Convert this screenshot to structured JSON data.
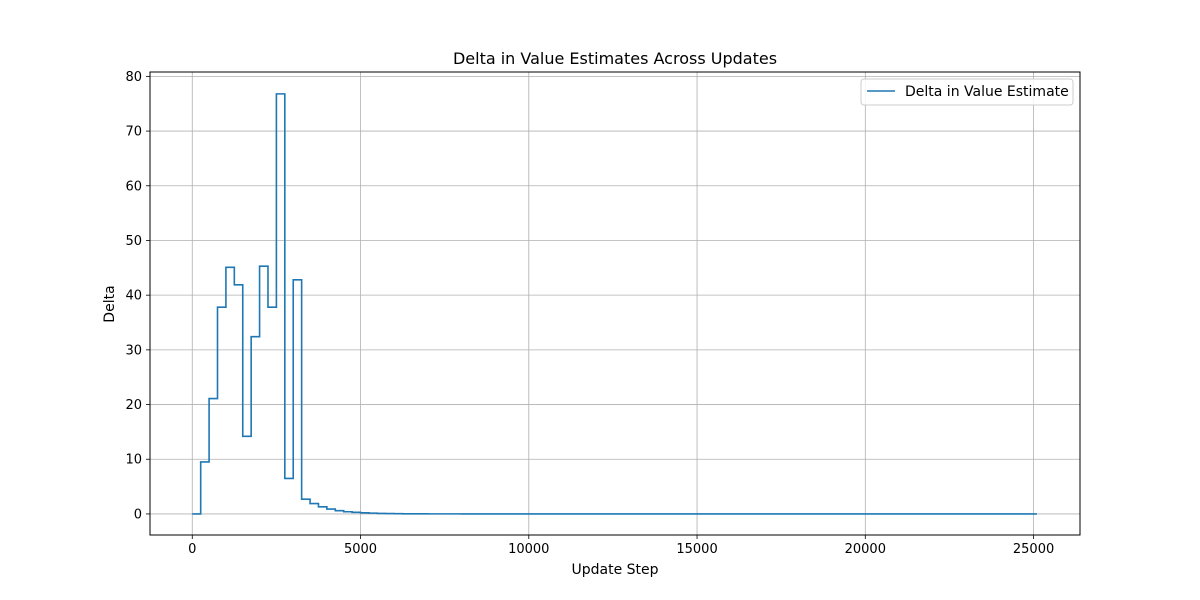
{
  "chart_data": {
    "type": "line",
    "drawstyle": "steps",
    "title": "Delta in Value Estimates Across Updates",
    "xlabel": "Update Step",
    "ylabel": "Delta",
    "xlim": [
      -1256,
      26380
    ],
    "ylim": [
      -3.85,
      80.8
    ],
    "xticks": [
      0,
      5000,
      10000,
      15000,
      20000,
      25000
    ],
    "yticks": [
      0,
      10,
      20,
      30,
      40,
      50,
      60,
      70,
      80
    ],
    "grid": true,
    "legend_position": "top-right",
    "line_color": "#1f77b4",
    "series": [
      {
        "name": "Delta in Value Estimate",
        "x": [
          0,
          250,
          500,
          750,
          1000,
          1250,
          1500,
          1750,
          2000,
          2250,
          2500,
          2750,
          3000,
          3250,
          3500,
          3750,
          4000,
          4250,
          4500,
          4750,
          5000,
          5250,
          5500,
          5750,
          6000,
          6250,
          6500,
          7000,
          8000,
          10000,
          15000,
          20000,
          25000,
          25100
        ],
        "y": [
          0,
          9.5,
          21.1,
          37.8,
          45.1,
          41.9,
          14.2,
          32.4,
          45.3,
          37.8,
          76.8,
          6.5,
          42.8,
          2.7,
          1.9,
          1.3,
          0.9,
          0.6,
          0.4,
          0.3,
          0.2,
          0.15,
          0.1,
          0.07,
          0.05,
          0.03,
          0.02,
          0.01,
          0,
          0,
          0,
          0,
          0,
          0
        ]
      }
    ]
  }
}
